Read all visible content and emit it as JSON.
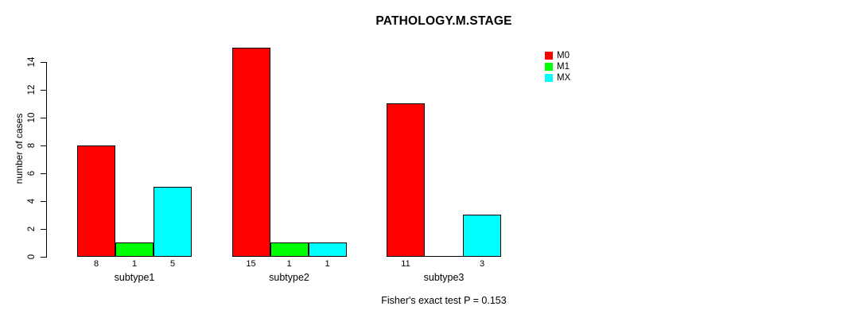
{
  "chart_data": {
    "type": "bar",
    "title": "PATHOLOGY.M.STAGE",
    "ylabel": "number of cases",
    "footnote": "Fisher's exact test P = 0.153",
    "categories": [
      "subtype1",
      "subtype2",
      "subtype3"
    ],
    "series": [
      {
        "name": "M0",
        "color": "#FF0000",
        "values": [
          8,
          15,
          11
        ]
      },
      {
        "name": "M1",
        "color": "#00FF00",
        "values": [
          1,
          1,
          0
        ]
      },
      {
        "name": "MX",
        "color": "#00FFFF",
        "values": [
          5,
          1,
          3
        ]
      }
    ],
    "bar_value_labels": [
      [
        "8",
        "1",
        "5"
      ],
      [
        "15",
        "1",
        "1"
      ],
      [
        "11",
        "",
        "3"
      ]
    ],
    "ylim": [
      0,
      14
    ],
    "yticks": [
      0,
      2,
      4,
      6,
      8,
      10,
      12,
      14
    ],
    "legend_position": "top-right",
    "grid": false,
    "axis_color": "#000000",
    "text_color": "#000000",
    "background_color": "#FFFFFF"
  }
}
